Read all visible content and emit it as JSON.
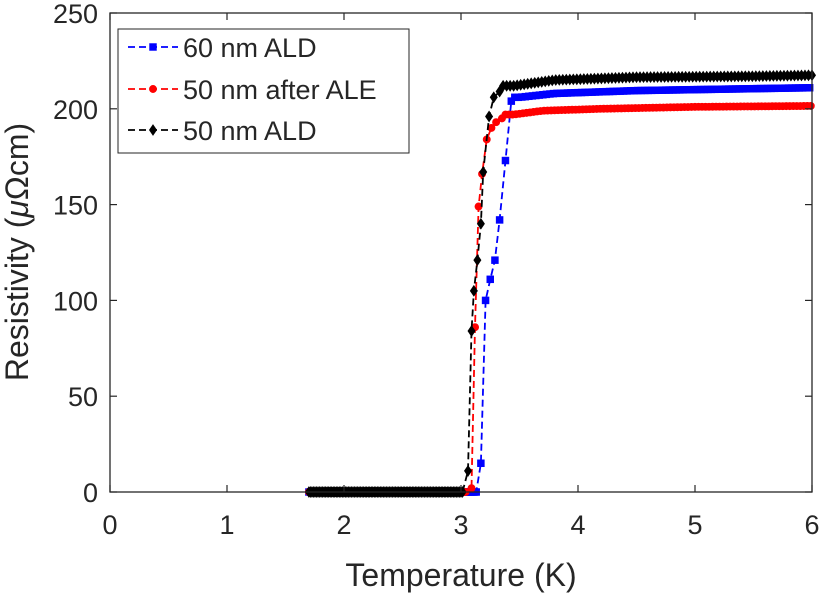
{
  "chart_data": {
    "type": "line",
    "title": "",
    "xlabel": "Temperature (K)",
    "ylabel_main": "Resistivity (",
    "ylabel_mu": "μ",
    "ylabel_unit": "Ωcm)",
    "xlim": [
      0,
      6
    ],
    "ylim": [
      0,
      250
    ],
    "xticks": [
      "0",
      "1",
      "2",
      "3",
      "4",
      "5",
      "6"
    ],
    "xtick_values": [
      0,
      1,
      2,
      3,
      4,
      5,
      6
    ],
    "yticks": [
      "0",
      "50",
      "100",
      "150",
      "200",
      "250"
    ],
    "ytick_values": [
      0,
      50,
      100,
      150,
      200,
      250
    ],
    "grid": false,
    "legend_position": "top-left",
    "series": [
      {
        "name": "60 nm ALD",
        "color": "#0000ff",
        "marker": "square",
        "line": "dashed",
        "low_start": 1.7,
        "low_end": 3.14,
        "transition": [
          [
            3.17,
            15
          ],
          [
            3.21,
            100
          ],
          [
            3.25,
            111
          ],
          [
            3.29,
            121
          ],
          [
            3.33,
            142
          ],
          [
            3.38,
            173
          ],
          [
            3.43,
            204
          ]
        ],
        "plateau": [
          [
            3.5,
            206
          ],
          [
            3.8,
            208
          ],
          [
            4.5,
            209.5
          ],
          [
            5.5,
            210.5
          ],
          [
            6.0,
            211
          ]
        ]
      },
      {
        "name": "50 nm after ALE",
        "color": "#ff0000",
        "marker": "circle",
        "line": "dashed",
        "low_start": 1.7,
        "low_end": 3.04,
        "transition": [
          [
            3.09,
            2
          ],
          [
            3.12,
            86
          ],
          [
            3.15,
            149
          ],
          [
            3.18,
            166
          ],
          [
            3.22,
            184
          ],
          [
            3.26,
            190
          ],
          [
            3.3,
            193
          ],
          [
            3.35,
            195
          ]
        ],
        "plateau": [
          [
            3.45,
            197
          ],
          [
            3.7,
            199
          ],
          [
            4.2,
            200
          ],
          [
            5.0,
            201
          ],
          [
            6.0,
            201.5
          ]
        ]
      },
      {
        "name": "50 nm ALD",
        "color": "#000000",
        "marker": "diamond",
        "line": "dashed",
        "low_start": 1.7,
        "low_end": 3.02,
        "transition": [
          [
            3.06,
            11
          ],
          [
            3.09,
            84
          ],
          [
            3.11,
            105
          ],
          [
            3.14,
            121
          ],
          [
            3.17,
            140
          ],
          [
            3.19,
            167
          ],
          [
            3.24,
            196
          ],
          [
            3.28,
            206
          ],
          [
            3.33,
            209
          ]
        ],
        "plateau": [
          [
            3.45,
            212
          ],
          [
            3.8,
            215
          ],
          [
            4.5,
            216.5
          ],
          [
            5.5,
            217
          ],
          [
            6.0,
            217.5
          ]
        ]
      }
    ]
  }
}
